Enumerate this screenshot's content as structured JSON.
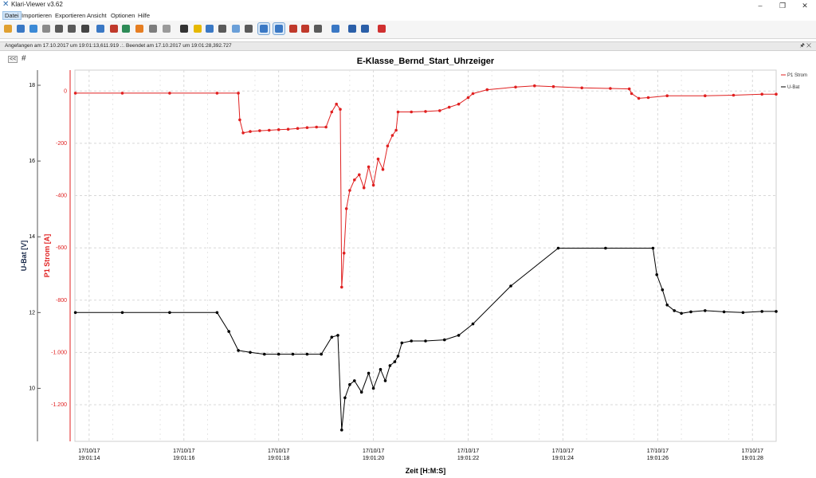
{
  "window": {
    "title": "Klari-Viewer v3.62",
    "minimize": "–",
    "restore": "❐",
    "close": "✕"
  },
  "menu": {
    "items": [
      "Datei",
      "Importieren",
      "Exportieren",
      "Ansicht",
      "Optionen",
      "Hilfe"
    ],
    "active": "Datei"
  },
  "toolbar": {
    "icons": [
      {
        "name": "open-folder-icon",
        "color": "#e0a030"
      },
      {
        "name": "refresh-icon",
        "color": "#3a78c4"
      },
      {
        "name": "image-icon",
        "color": "#3c8ad6"
      },
      {
        "name": "wrench-icon",
        "color": "#8a8a8a"
      },
      {
        "name": "print-icon",
        "color": "#5a5a5a"
      },
      {
        "name": "save-icon",
        "color": "#5a5a5a"
      },
      {
        "name": "tools-icon",
        "color": "#444444"
      },
      {
        "name": "document-icon",
        "color": "#3a78c4"
      },
      {
        "name": "pdf-icon",
        "color": "#c0392b"
      },
      {
        "name": "export-icon",
        "color": "#2e8b57"
      },
      {
        "name": "palette-icon",
        "color": "#e67e22"
      },
      {
        "name": "chart-bar-icon",
        "color": "#7d7d7d"
      },
      {
        "name": "grid-icon",
        "color": "#9a9a9a"
      },
      {
        "name": "d-icon",
        "color": "#333333"
      },
      {
        "name": "shapes-icon",
        "color": "#e6b800"
      },
      {
        "name": "measure-icon",
        "color": "#3a78c4"
      },
      {
        "name": "sigma-icon",
        "color": "#5a5a5a"
      },
      {
        "name": "wave-icon",
        "color": "#6a9fd8"
      },
      {
        "name": "filter-icon",
        "color": "#5a5a5a"
      },
      {
        "name": "axis-icon",
        "color": "#3a78c4"
      },
      {
        "name": "line-chart-icon",
        "color": "#3a78c4"
      },
      {
        "name": "pin-icon",
        "color": "#c0392b"
      },
      {
        "name": "marker-icon",
        "color": "#c0392b"
      },
      {
        "name": "zoom-icon",
        "color": "#5a5a5a"
      },
      {
        "name": "eraser-icon",
        "color": "#3a78c4"
      },
      {
        "name": "book-icon",
        "color": "#2b5fa8"
      },
      {
        "name": "info-icon",
        "color": "#2b5fa8"
      },
      {
        "name": "power-icon",
        "color": "#d03030"
      }
    ],
    "pressed": [
      "axis-icon",
      "line-chart-icon"
    ]
  },
  "status": {
    "text": "Angefangen am 17.10.2017 um 19:01:13,611.919 .:. Beendet am 17.10.2017 um 19:01:28,392.727",
    "pin": "🖈",
    "close": "✕"
  },
  "chart": {
    "nav_back": "<<",
    "nav_grid": "#",
    "colors": {
      "strom": "#e02020",
      "ubat": "#000000",
      "grid": "#d8d8d8",
      "axis": "#555555"
    }
  },
  "chart_data": {
    "type": "line",
    "title": "E-Klasse_Bernd_Start_Uhrzeiger",
    "xlabel": "Zeit [H:M:S]",
    "ylabel_left": "U-Bat [V]",
    "ylabel_right": "P1 Strom [A]",
    "xlim": [
      13.7,
      28.5
    ],
    "x_ticks": [
      {
        "t": 14,
        "d": "17/10/17",
        "h": "19:01:14"
      },
      {
        "t": 16,
        "d": "17/10/17",
        "h": "19:01:16"
      },
      {
        "t": 18,
        "d": "17/10/17",
        "h": "19:01:18"
      },
      {
        "t": 20,
        "d": "17/10/17",
        "h": "19:01:20"
      },
      {
        "t": 22,
        "d": "17/10/17",
        "h": "19:01:22"
      },
      {
        "t": 24,
        "d": "17/10/17",
        "h": "19:01:24"
      },
      {
        "t": 26,
        "d": "17/10/17",
        "h": "19:01:26"
      },
      {
        "t": 28,
        "d": "17/10/17",
        "h": "19:01:28"
      }
    ],
    "y_ubat": {
      "ylim": [
        8.6,
        18.4
      ],
      "ticks": [
        10,
        12,
        14,
        16,
        18
      ]
    },
    "y_strom": {
      "ylim": [
        -1340,
        80
      ],
      "ticks": [
        0,
        -200,
        -400,
        -600,
        -800,
        -1000,
        -1200
      ],
      "tick_labels": [
        "0",
        "-200",
        "-400",
        "-600",
        "-800",
        "-1.000",
        "-1.200"
      ]
    },
    "legend": [
      "P1 Strom",
      "U-Bat"
    ],
    "series": [
      {
        "name": "P1 Strom",
        "color": "#e02020",
        "points": [
          [
            13.71,
            -8
          ],
          [
            14.7,
            -8
          ],
          [
            15.7,
            -8
          ],
          [
            16.7,
            -8
          ],
          [
            17.15,
            -8
          ],
          [
            17.18,
            -110
          ],
          [
            17.25,
            -160
          ],
          [
            17.4,
            -155
          ],
          [
            17.6,
            -152
          ],
          [
            17.8,
            -150
          ],
          [
            18.0,
            -148
          ],
          [
            18.2,
            -146
          ],
          [
            18.4,
            -143
          ],
          [
            18.6,
            -140
          ],
          [
            18.8,
            -138
          ],
          [
            19.0,
            -138
          ],
          [
            19.12,
            -80
          ],
          [
            19.22,
            -50
          ],
          [
            19.3,
            -70
          ],
          [
            19.33,
            -750
          ],
          [
            19.38,
            -620
          ],
          [
            19.43,
            -450
          ],
          [
            19.5,
            -380
          ],
          [
            19.6,
            -340
          ],
          [
            19.7,
            -320
          ],
          [
            19.8,
            -370
          ],
          [
            19.9,
            -290
          ],
          [
            20.0,
            -360
          ],
          [
            20.1,
            -260
          ],
          [
            20.2,
            -300
          ],
          [
            20.3,
            -210
          ],
          [
            20.4,
            -170
          ],
          [
            20.48,
            -150
          ],
          [
            20.52,
            -80
          ],
          [
            20.8,
            -80
          ],
          [
            21.1,
            -78
          ],
          [
            21.4,
            -75
          ],
          [
            21.6,
            -62
          ],
          [
            21.8,
            -50
          ],
          [
            22.0,
            -25
          ],
          [
            22.1,
            -10
          ],
          [
            22.4,
            5
          ],
          [
            23.0,
            15
          ],
          [
            23.4,
            20
          ],
          [
            23.8,
            17
          ],
          [
            24.4,
            12
          ],
          [
            25.0,
            10
          ],
          [
            25.4,
            8
          ],
          [
            25.45,
            -10
          ],
          [
            25.6,
            -28
          ],
          [
            25.8,
            -25
          ],
          [
            26.2,
            -18
          ],
          [
            27.0,
            -18
          ],
          [
            27.6,
            -16
          ],
          [
            28.2,
            -12
          ],
          [
            28.5,
            -12
          ]
        ]
      },
      {
        "name": "U-Bat",
        "color": "#000000",
        "points": [
          [
            13.71,
            12.0
          ],
          [
            14.7,
            12.0
          ],
          [
            15.7,
            12.0
          ],
          [
            16.7,
            12.0
          ],
          [
            16.95,
            11.5
          ],
          [
            17.15,
            11.0
          ],
          [
            17.4,
            10.95
          ],
          [
            17.7,
            10.9
          ],
          [
            18.0,
            10.9
          ],
          [
            18.3,
            10.9
          ],
          [
            18.6,
            10.9
          ],
          [
            18.9,
            10.9
          ],
          [
            19.12,
            11.35
          ],
          [
            19.25,
            11.4
          ],
          [
            19.33,
            8.9
          ],
          [
            19.4,
            9.75
          ],
          [
            19.5,
            10.1
          ],
          [
            19.6,
            10.2
          ],
          [
            19.75,
            9.9
          ],
          [
            19.9,
            10.4
          ],
          [
            20.0,
            10.0
          ],
          [
            20.15,
            10.5
          ],
          [
            20.25,
            10.2
          ],
          [
            20.35,
            10.6
          ],
          [
            20.45,
            10.7
          ],
          [
            20.52,
            10.85
          ],
          [
            20.6,
            11.2
          ],
          [
            20.8,
            11.25
          ],
          [
            21.1,
            11.25
          ],
          [
            21.5,
            11.28
          ],
          [
            21.8,
            11.4
          ],
          [
            22.1,
            11.7
          ],
          [
            22.9,
            12.7
          ],
          [
            23.9,
            13.7
          ],
          [
            24.9,
            13.7
          ],
          [
            25.9,
            13.7
          ],
          [
            25.98,
            13.0
          ],
          [
            26.1,
            12.6
          ],
          [
            26.2,
            12.2
          ],
          [
            26.35,
            12.05
          ],
          [
            26.5,
            11.98
          ],
          [
            26.7,
            12.02
          ],
          [
            27.0,
            12.05
          ],
          [
            27.4,
            12.02
          ],
          [
            27.8,
            12.0
          ],
          [
            28.2,
            12.03
          ],
          [
            28.5,
            12.03
          ]
        ]
      }
    ]
  }
}
